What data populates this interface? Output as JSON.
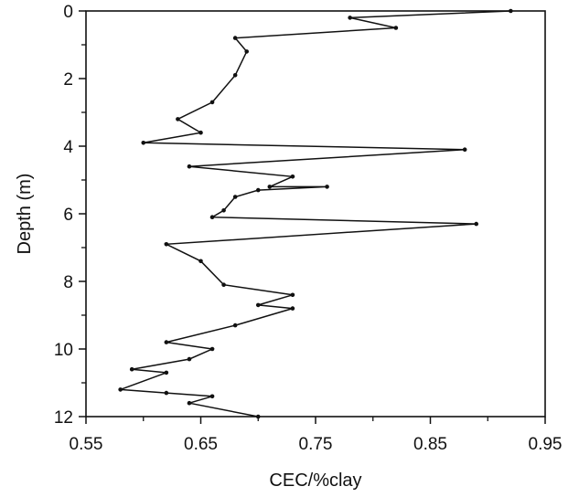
{
  "chart_data": {
    "type": "line",
    "title": "",
    "xlabel": "CEC/%clay",
    "ylabel": "Depth (m)",
    "xlim": [
      0.55,
      0.95
    ],
    "ylim": [
      12,
      0
    ],
    "y_inverted": true,
    "grid": false,
    "legend": "none",
    "x_ticks": [
      "0.55",
      "0.65",
      "0.75",
      "0.85",
      "0.95"
    ],
    "y_ticks": [
      "0",
      "2",
      "4",
      "6",
      "8",
      "10",
      "12"
    ],
    "colors": {
      "line": "#111111",
      "axis": "#111111",
      "background": "#ffffff"
    },
    "series": [
      {
        "x": [
          0.92,
          0.78,
          0.82,
          0.68,
          0.69,
          0.68,
          0.66,
          0.63,
          0.65,
          0.6,
          0.88,
          0.64,
          0.73,
          0.71,
          0.76,
          0.7,
          0.68,
          0.67,
          0.66,
          0.89,
          0.62,
          0.65,
          0.67,
          0.73,
          0.7,
          0.73,
          0.68,
          0.62,
          0.66,
          0.64,
          0.59,
          0.62,
          0.58,
          0.62,
          0.66,
          0.64,
          0.7
        ],
        "y": [
          0.0,
          0.2,
          0.5,
          0.8,
          1.2,
          1.9,
          2.7,
          3.2,
          3.6,
          3.9,
          4.1,
          4.6,
          4.9,
          5.2,
          5.2,
          5.3,
          5.5,
          5.9,
          6.1,
          6.3,
          6.9,
          7.4,
          8.1,
          8.4,
          8.7,
          8.8,
          9.3,
          9.8,
          10.0,
          10.3,
          10.6,
          10.7,
          11.2,
          11.3,
          11.4,
          11.6,
          12.0
        ]
      }
    ]
  }
}
